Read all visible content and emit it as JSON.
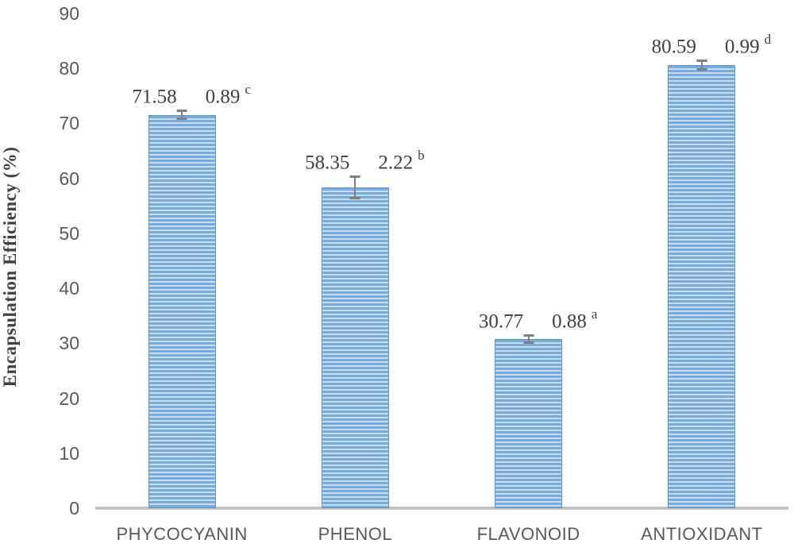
{
  "chart_data": {
    "type": "bar",
    "title": "",
    "xlabel": "",
    "ylabel": "Encapsulation Efficiency (%)",
    "ylim": [
      0,
      90
    ],
    "yticks": [
      0,
      10,
      20,
      30,
      40,
      50,
      60,
      70,
      80,
      90
    ],
    "grid": false,
    "legend": null,
    "categories": [
      "PHYCOCYANIN",
      "PHENOL",
      "FLAVONOID",
      "ANTIOXIDANT"
    ],
    "series": [
      {
        "name": "Encapsulation Efficiency",
        "values": [
          71.58,
          58.35,
          30.77,
          80.59
        ],
        "errors": [
          0.89,
          2.22,
          0.88,
          0.99
        ],
        "value_labels": [
          "71.58",
          "58.35",
          "30.77",
          "80.59"
        ],
        "error_labels": [
          "0.89",
          "2.22",
          "0.88",
          "0.99"
        ],
        "sig_letters": [
          "c",
          "b",
          "a",
          "d"
        ]
      }
    ],
    "colors": {
      "bar_stripe_dark": "#79ACDE",
      "bar_stripe_light": "#C9DDF2",
      "bar_border": "#5D95CF",
      "error_bar": "#7F7F7F",
      "axis_line": "#C0C0C0",
      "tick_label": "#595959",
      "category_label": "#595959",
      "data_label": "#404040",
      "y_title": "#404040"
    }
  }
}
